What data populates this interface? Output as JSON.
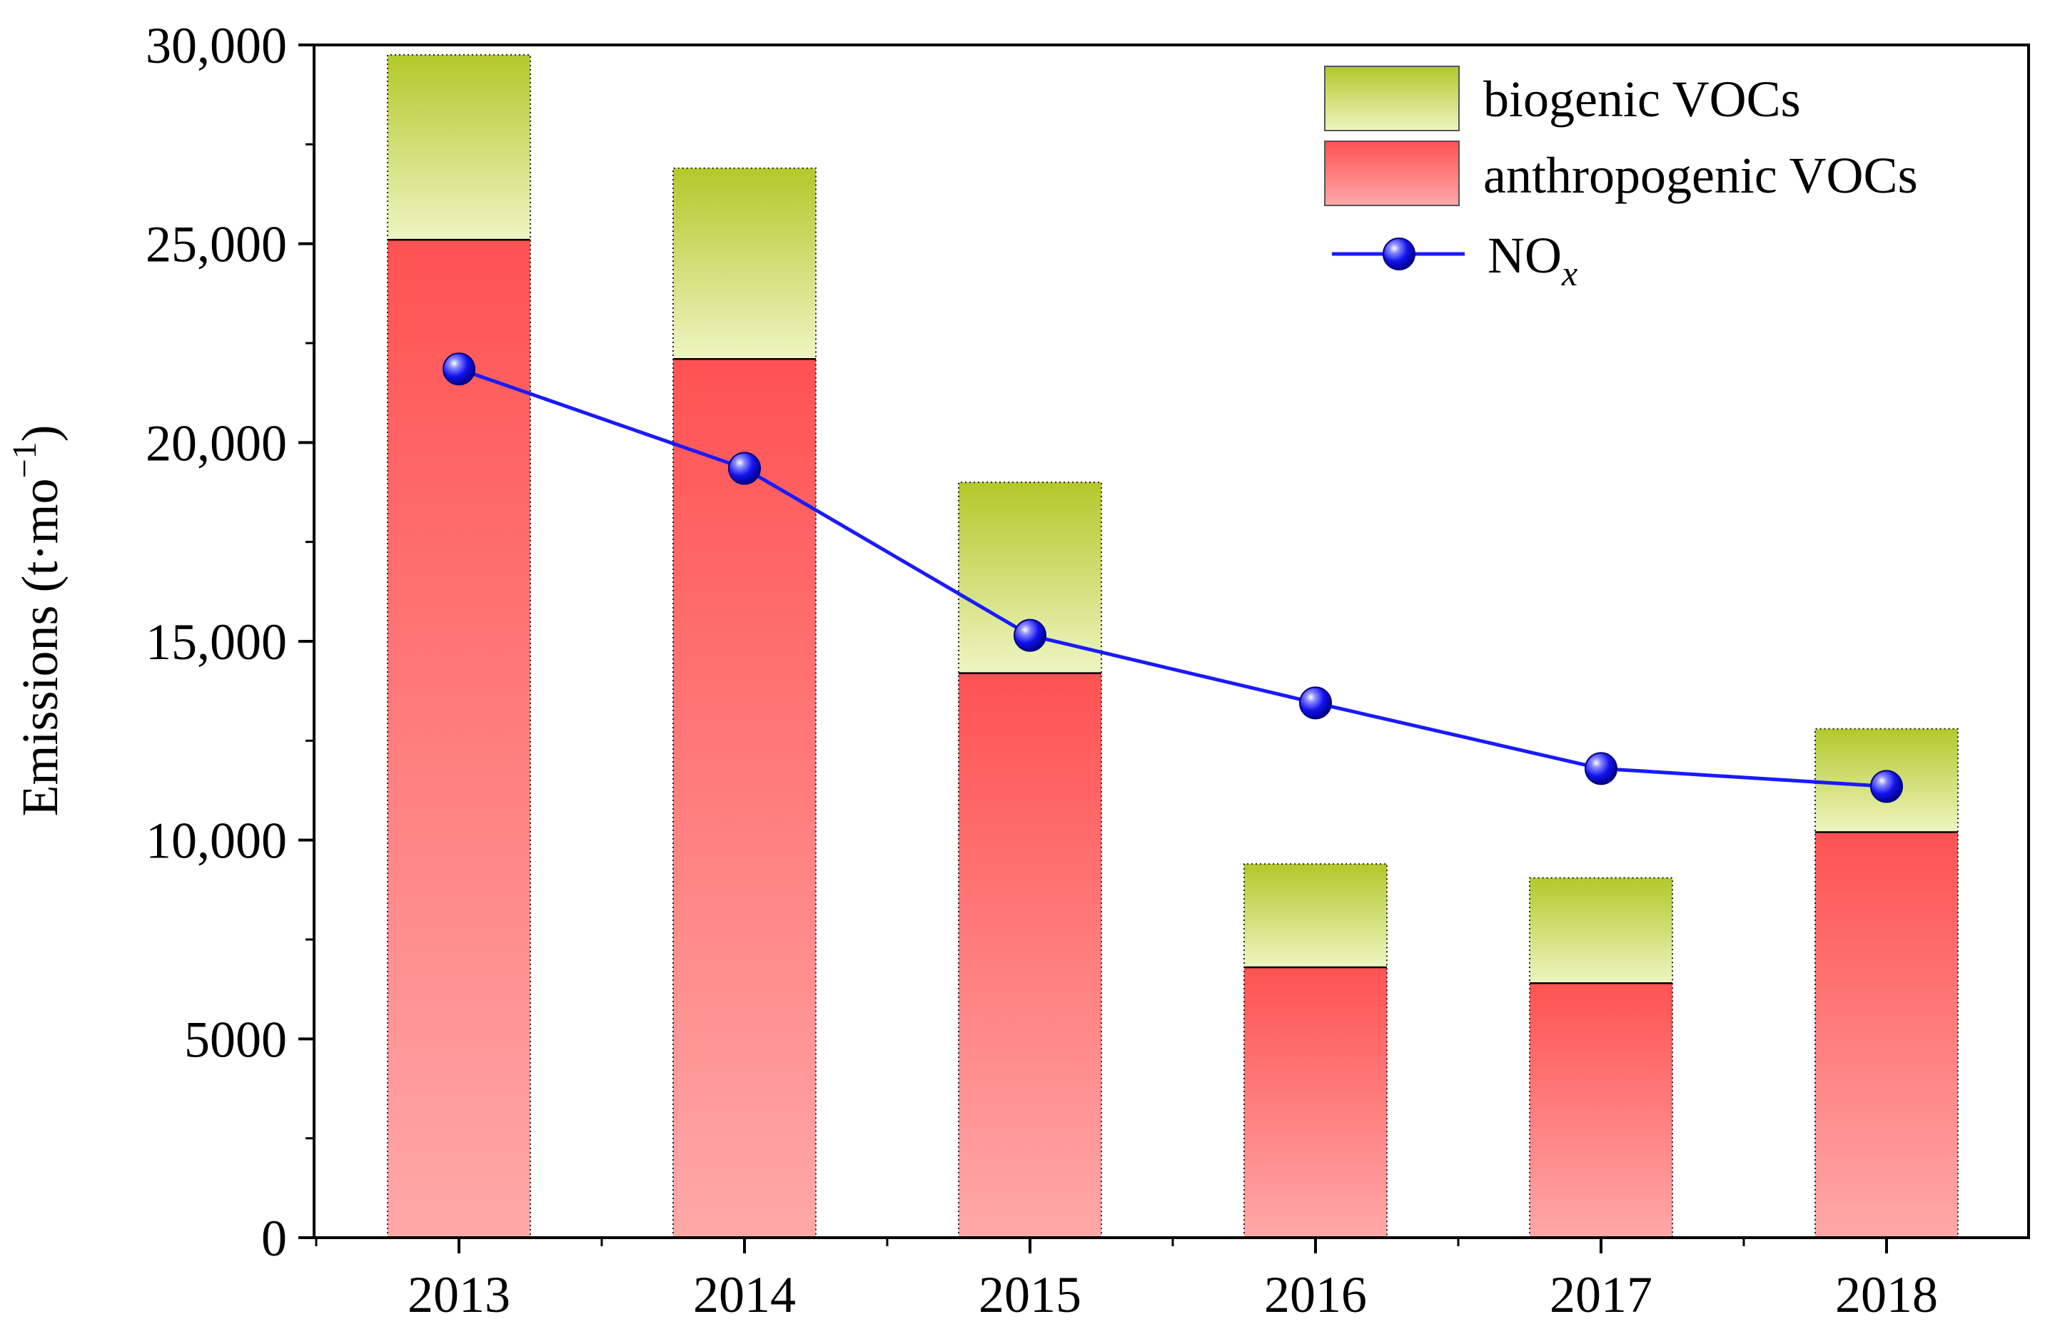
{
  "chart_data": {
    "type": "bar",
    "stacked": true,
    "title": "",
    "xlabel": "",
    "ylabel": "Emissions (t·mo",
    "ylabel_sup": "−1",
    "ylabel_close": ")",
    "ylim": [
      0,
      30000
    ],
    "yticks": [
      0,
      5000,
      10000,
      15000,
      20000,
      25000,
      30000
    ],
    "ytick_labels": [
      "0",
      "5000",
      "10,000",
      "15,000",
      "20,000",
      "25,000",
      "30,000"
    ],
    "categories": [
      "2013",
      "2014",
      "2015",
      "2016",
      "2017",
      "2018"
    ],
    "series": [
      {
        "name": "anthropogenic VOCs",
        "kind": "bar",
        "color": "#ff5555",
        "values": [
          25100,
          22100,
          14200,
          6800,
          6400,
          10200
        ]
      },
      {
        "name": "biogenic VOCs",
        "kind": "bar",
        "color": "#b5cc2e",
        "values": [
          4650,
          4800,
          4800,
          2600,
          2650,
          2600
        ]
      },
      {
        "name": "NO",
        "name_sub": "x",
        "kind": "line",
        "color": "#1a1aff",
        "values": [
          21850,
          19350,
          15150,
          13450,
          11800,
          11350
        ]
      }
    ],
    "legend": {
      "position": "top-right",
      "entries": [
        {
          "label": "biogenic VOCs",
          "series": "biogenic VOCs"
        },
        {
          "label": "anthropogenic VOCs",
          "series": "anthropogenic VOCs"
        },
        {
          "label": "NO",
          "sub": "x",
          "series": "NO"
        }
      ]
    }
  }
}
